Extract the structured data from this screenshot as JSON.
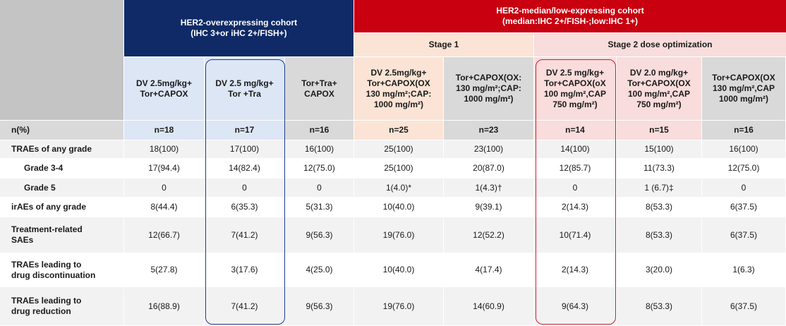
{
  "header": {
    "her2_over_title": "HER2-overexpressing cohort\n(IHC 3+or iHC 2+/FISH+)",
    "her2_low_title": "HER2-median/low-expressing cohort\n(median:IHC 2+/FISH-;low:IHC 1+)",
    "stage1": "Stage 1",
    "stage2": "Stage 2 dose optimization"
  },
  "arms": [
    "DV 2.5mg/kg+\nTor+CAPOX",
    "DV 2.5 mg/kg+\nTor +Tra",
    "Tor+Tra+\nCAPOX",
    "DV    2.5mg/kg+\nTor+CAPOX(OX\n130  mg/m²;CAP:\n1000  mg/m²)",
    "Tor+CAPOX(OX:\n130  mg/m²;CAP:\n1000  mg/m²)",
    "DV 2.5 mg/kg+\nTor+CAPOX(oX\n100  mg/m²,CAP\n750  mg/m²)",
    "DV 2.0 mg/kg+\nTor+CAPOX(OX\n100  mg/m²,CAP\n750  mg/m²)",
    "Tor+CAPOX(OX\n130  mg/m²,CAP\n1000  mg/m²)"
  ],
  "rows": [
    {
      "label": "n(%)",
      "type": "n",
      "values": [
        "n=18",
        "n=17",
        "n=16",
        "n=25",
        "n=23",
        "n=14",
        "n=15",
        "n=16"
      ]
    },
    {
      "label": "TRAEs of any grade",
      "type": "bold",
      "values": [
        "18(100)",
        "17(100)",
        "16(100)",
        "25(100)",
        "23(100)",
        "14(100)",
        "15(100)",
        "16(100)"
      ]
    },
    {
      "label": "Grade 3-4",
      "type": "indent",
      "values": [
        "17(94.4)",
        "14(82.4)",
        "12(75.0)",
        "25(100)",
        "20(87.0)",
        "12(85.7)",
        "11(73.3)",
        "12(75.0)"
      ]
    },
    {
      "label": "Grade 5",
      "type": "indent",
      "values": [
        "0",
        "0",
        "0",
        "1(4.0)*",
        "1(4.3)†",
        "0",
        "1 (6.7)‡",
        "0"
      ]
    },
    {
      "label": "irAEs of any grade",
      "type": "bold",
      "values": [
        "8(44.4)",
        "6(35.3)",
        "5(31.3)",
        "10(40.0)",
        "9(39.1)",
        "2(14.3)",
        "8(53.3)",
        "6(37.5)"
      ]
    },
    {
      "label": "Treatment-related\nSAEs",
      "type": "bold",
      "values": [
        "12(66.7)",
        "7(41.2)",
        "9(56.3)",
        "19(76.0)",
        "12(52.2)",
        "10(71.4)",
        "8(53.3)",
        "6(37.5)"
      ]
    },
    {
      "label": "TRAEs leading to\ndrug discontinuation",
      "type": "bold",
      "values": [
        "5(27.8)",
        "3(17.6)",
        "4(25.0)",
        "10(40.0)",
        "4(17.4)",
        "2(14.3)",
        "3(20.0)",
        "1(6.3)"
      ]
    },
    {
      "label": "TRAEs leading to\ndrug reduction",
      "type": "bold",
      "values": [
        "16(88.9)",
        "7(41.2)",
        "9(56.3)",
        "19(76.0)",
        "14(60.9)",
        "9(64.3)",
        "8(53.3)",
        "6(37.5)"
      ]
    }
  ],
  "colors": {
    "navy": "#0f2a66",
    "red": "#c8000f",
    "corner_gray": "#c4c4c4",
    "light_blue": "#dce6f5",
    "peach": "#fbe4d5",
    "pink": "#f9dcdc",
    "gray_arm": "#d9d9d9",
    "row_alt": "#f2f2f2",
    "row_white": "#ffffff",
    "highlight_blue": "#1f3c88",
    "highlight_red": "#d11a2a"
  }
}
